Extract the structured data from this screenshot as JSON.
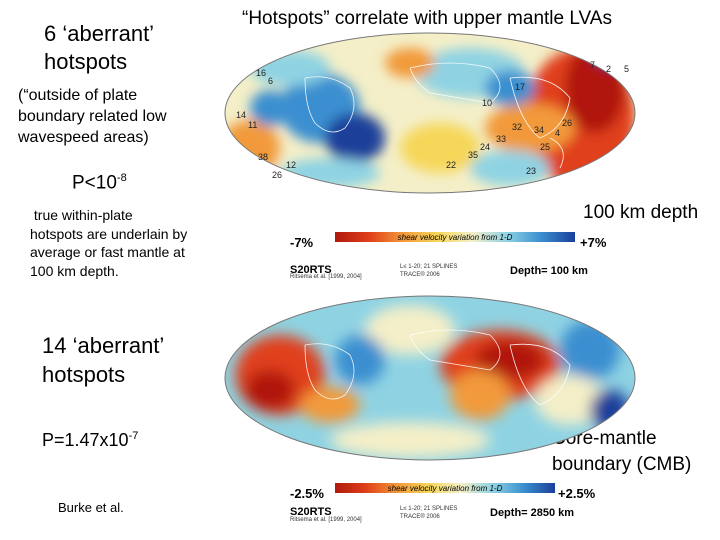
{
  "title": "“Hotspots” correlate with upper mantle LVAs",
  "left_top": {
    "heading_line1": "6 ‘aberrant’",
    "heading_line2": "hotspots",
    "note_line1": "(“outside of plate",
    "note_line2": "boundary related low",
    "note_line3": "wavespeed areas)",
    "p_base": "P<10",
    "p_exp": "-8",
    "desc_line1": " true within-plate",
    "desc_line2": "hotspots are underlain by",
    "desc_line3": "average or fast mantle at",
    "desc_line4": "100 km depth."
  },
  "left_bottom": {
    "heading_line1": "14 ‘aberrant’",
    "heading_line2": "hotspots",
    "p_base": "P=1.47x10",
    "p_exp": "-7",
    "credit": "Burke et al."
  },
  "map_top": {
    "depth_caption": "100 km depth",
    "scale_title": "shear velocity variation from 1-D",
    "scale_min": "-7%",
    "scale_max": "+7%",
    "model": "S20RTS",
    "model_ref": "Ritsema et al. [1999, 2004]",
    "spline_line1": "L≤ 1-20; 21 SPLINES",
    "spline_line2": "TRACE® 2006",
    "depth_label": "Depth= 100 km",
    "hotspot_numbers": [
      "16",
      "6",
      "7",
      "2",
      "5",
      "17",
      "10",
      "14",
      "11",
      "32",
      "34",
      "26",
      "33",
      "4",
      "24",
      "25",
      "35",
      "38",
      "12",
      "26",
      "23",
      "22"
    ]
  },
  "map_bottom": {
    "depth_caption_line1": "Core-mantle",
    "depth_caption_line2": "boundary (CMB)",
    "scale_title": "shear velocity variation from 1-D",
    "scale_min": "-2.5%",
    "scale_max": "+2.5%",
    "model": "S20RTS",
    "model_ref": "Ritsema et al. [1999, 2004]",
    "spline_line1": "L≤ 1-20; 21 SPLINES",
    "spline_line2": "TRACE® 2006",
    "depth_label": "Depth= 2850 km"
  },
  "colors": {
    "deep_red": "#b0180c",
    "red": "#e0401a",
    "orange": "#f29a3a",
    "yellow": "#f6d75a",
    "pale": "#f4efc8",
    "cyan": "#8fd3e3",
    "blue": "#3b8fd0",
    "deep_blue": "#1a3f9a"
  }
}
